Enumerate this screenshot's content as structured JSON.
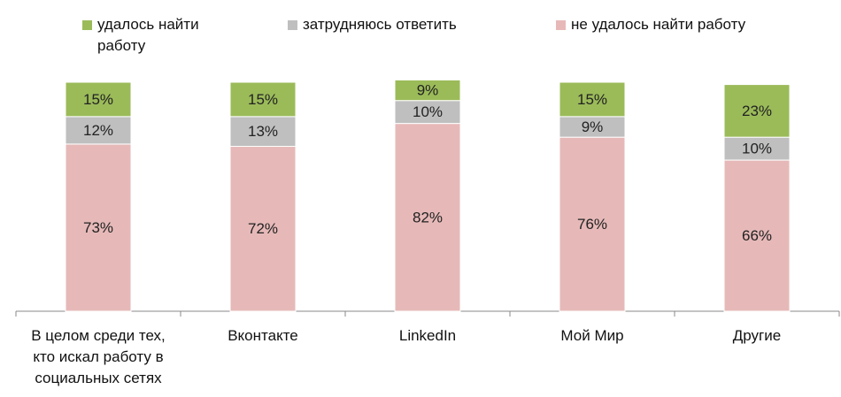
{
  "chart_data": {
    "type": "stacked_bar",
    "categories": [
      "В целом среди тех, кто искал работу в социальных сетях",
      "Вконтакте",
      "LinkedIn",
      "Мой Мир",
      "Другие"
    ],
    "series": [
      {
        "name": "удалось найти работу",
        "color": "#9bbb59",
        "values": [
          15,
          15,
          9,
          15,
          23
        ],
        "value_labels": [
          "15%",
          "15%",
          "9%",
          "15%",
          "23%"
        ]
      },
      {
        "name": "затрудняюсь ответить",
        "color": "#bfbfbf",
        "values": [
          12,
          13,
          10,
          9,
          10
        ],
        "value_labels": [
          "12%",
          "13%",
          "10%",
          "9%",
          "10%"
        ]
      },
      {
        "name": "не удалось найти работу",
        "color": "#e6b9b8",
        "values": [
          73,
          72,
          82,
          76,
          66
        ],
        "value_labels": [
          "73%",
          "72%",
          "82%",
          "76%",
          "66%"
        ]
      }
    ],
    "ylim": [
      0,
      100
    ],
    "legend": "top"
  }
}
